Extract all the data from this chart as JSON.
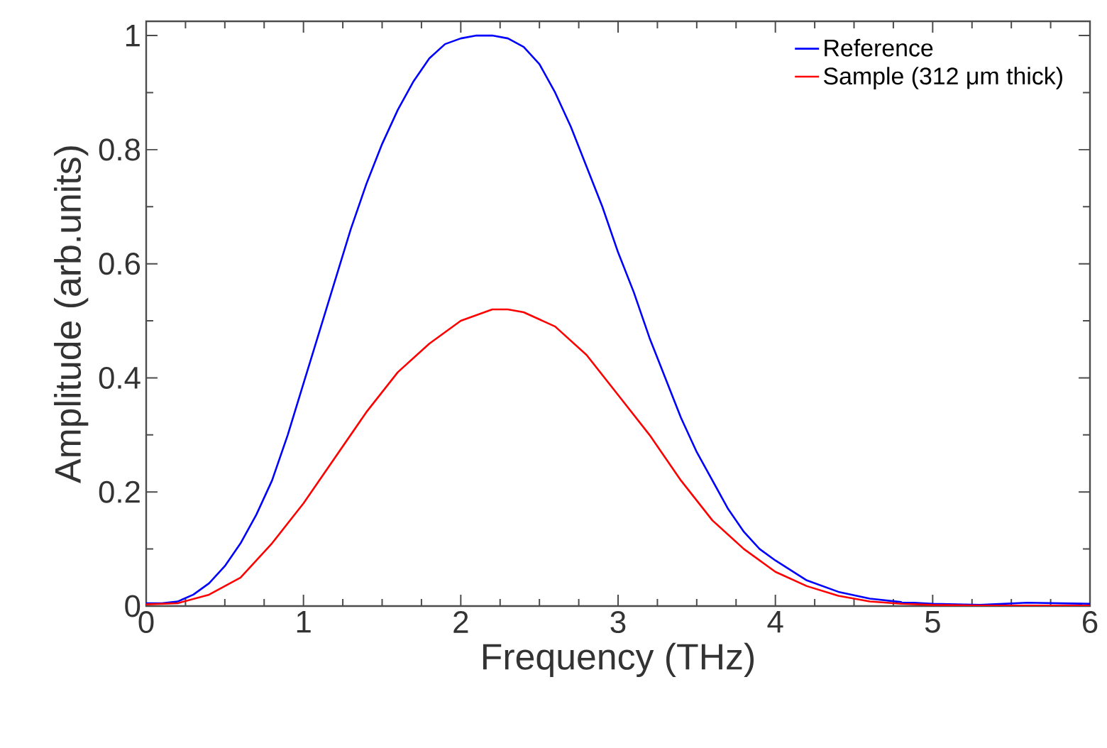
{
  "chart_data": {
    "type": "line",
    "xlabel": "Frequency (THz)",
    "ylabel": "Amplitude (arb.units)",
    "xlim": [
      0,
      6
    ],
    "ylim": [
      0,
      1.025
    ],
    "xticks": [
      0,
      1,
      2,
      3,
      4,
      5,
      6
    ],
    "yticks": [
      0,
      0.2,
      0.4,
      0.6,
      0.8,
      1
    ],
    "grid": false,
    "legend": "top right",
    "marker": "none",
    "line_style": "solid",
    "series": [
      {
        "name": "Reference",
        "color": "#0000ff",
        "x": [
          0,
          0.1,
          0.2,
          0.3,
          0.4,
          0.5,
          0.6,
          0.7,
          0.8,
          0.9,
          1.0,
          1.1,
          1.2,
          1.3,
          1.4,
          1.5,
          1.6,
          1.7,
          1.8,
          1.9,
          2.0,
          2.1,
          2.2,
          2.3,
          2.4,
          2.5,
          2.6,
          2.7,
          2.8,
          2.9,
          3.0,
          3.1,
          3.2,
          3.3,
          3.4,
          3.5,
          3.6,
          3.7,
          3.8,
          3.9,
          4.0,
          4.2,
          4.4,
          4.6,
          4.8,
          5.0,
          5.3,
          5.6,
          6.0
        ],
        "values": [
          0.005,
          0.005,
          0.008,
          0.02,
          0.04,
          0.07,
          0.11,
          0.16,
          0.22,
          0.3,
          0.39,
          0.48,
          0.57,
          0.66,
          0.74,
          0.81,
          0.87,
          0.92,
          0.96,
          0.985,
          0.995,
          1.0,
          1.0,
          0.995,
          0.98,
          0.95,
          0.9,
          0.84,
          0.77,
          0.7,
          0.62,
          0.55,
          0.47,
          0.4,
          0.33,
          0.27,
          0.22,
          0.17,
          0.13,
          0.1,
          0.08,
          0.045,
          0.025,
          0.013,
          0.007,
          0.004,
          0.002,
          0.006,
          0.004
        ]
      },
      {
        "name": "Sample (312 μm thick)",
        "color": "#ff0000",
        "x": [
          0,
          0.2,
          0.4,
          0.6,
          0.8,
          1.0,
          1.2,
          1.4,
          1.6,
          1.8,
          2.0,
          2.2,
          2.3,
          2.4,
          2.6,
          2.8,
          3.0,
          3.2,
          3.4,
          3.6,
          3.8,
          4.0,
          4.2,
          4.4,
          4.6,
          4.8,
          5.0,
          5.3,
          6.0
        ],
        "values": [
          0.003,
          0.005,
          0.02,
          0.05,
          0.11,
          0.18,
          0.26,
          0.34,
          0.41,
          0.46,
          0.5,
          0.52,
          0.52,
          0.515,
          0.49,
          0.44,
          0.37,
          0.3,
          0.22,
          0.15,
          0.1,
          0.06,
          0.035,
          0.018,
          0.008,
          0.004,
          0.002,
          0.001,
          0.001
        ]
      }
    ]
  }
}
